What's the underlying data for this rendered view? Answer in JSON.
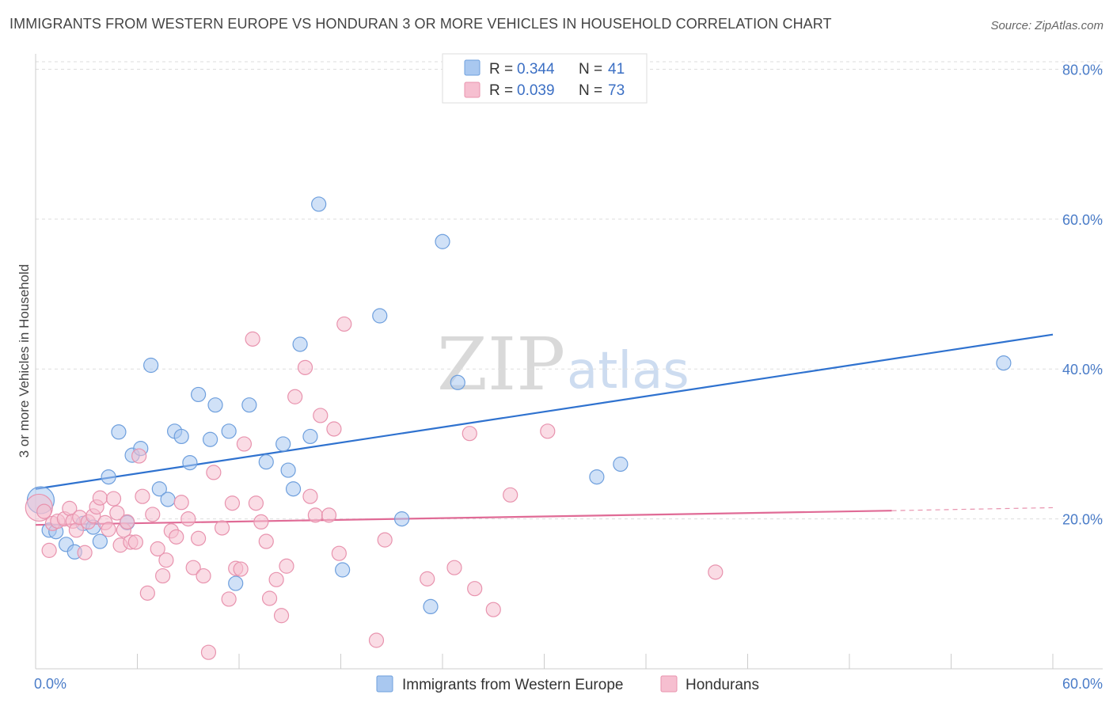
{
  "title": "IMMIGRANTS FROM WESTERN EUROPE VS HONDURAN 3 OR MORE VEHICLES IN HOUSEHOLD CORRELATION CHART",
  "source": "Source: ZipAtlas.com",
  "watermark": {
    "zip": "ZIP",
    "atlas": "atlas"
  },
  "colors": {
    "blue_fill": "#a9c8f0",
    "blue_stroke": "#6e9fdd",
    "blue_line": "#2f72cf",
    "pink_fill": "#f6bfd0",
    "pink_stroke": "#e893ae",
    "pink_line": "#e06b96",
    "grid": "#dddddd",
    "tick_text": "#4a7cc8"
  },
  "stats": [
    {
      "r_label": "R =",
      "r_value": "0.344",
      "n_label": "N =",
      "n_value": "41"
    },
    {
      "r_label": "R =",
      "r_value": "0.039",
      "n_label": "N =",
      "n_value": "73"
    }
  ],
  "chart_data": {
    "type": "scatter",
    "title": "IMMIGRANTS FROM WESTERN EUROPE VS HONDURAN 3 OR MORE VEHICLES IN HOUSEHOLD CORRELATION CHART",
    "xlabel": "",
    "ylabel": "3 or more Vehicles in Household",
    "xlim": [
      0,
      60
    ],
    "ylim": [
      0,
      81
    ],
    "y_ticks": [
      20,
      40,
      60,
      80
    ],
    "y_tick_labels": [
      "20.0%",
      "40.0%",
      "60.0%",
      "80.0%"
    ],
    "x_tick_labels": [
      "0.0%",
      "60.0%"
    ],
    "grid": "horizontal dashed",
    "legend_position": "bottom",
    "series": [
      {
        "name": "Immigrants from Western Europe",
        "r": 0.344,
        "n": 41,
        "trend": {
          "x": [
            0,
            60
          ],
          "y": [
            24.0,
            44.6
          ]
        },
        "points": [
          [
            0.3,
            22.5
          ],
          [
            0.8,
            18.5
          ],
          [
            1.2,
            18.3
          ],
          [
            1.8,
            16.6
          ],
          [
            2.3,
            15.6
          ],
          [
            2.8,
            19.4
          ],
          [
            3.4,
            18.9
          ],
          [
            3.8,
            17.0
          ],
          [
            4.3,
            25.6
          ],
          [
            4.9,
            31.6
          ],
          [
            5.4,
            19.5
          ],
          [
            5.7,
            28.5
          ],
          [
            6.2,
            29.4
          ],
          [
            6.8,
            40.5
          ],
          [
            7.3,
            24.0
          ],
          [
            7.8,
            22.6
          ],
          [
            8.2,
            31.7
          ],
          [
            8.6,
            31.0
          ],
          [
            9.1,
            27.5
          ],
          [
            9.6,
            36.6
          ],
          [
            10.3,
            30.6
          ],
          [
            10.6,
            35.2
          ],
          [
            11.4,
            31.7
          ],
          [
            11.8,
            11.4
          ],
          [
            12.6,
            35.2
          ],
          [
            13.6,
            27.6
          ],
          [
            14.6,
            30.0
          ],
          [
            14.9,
            26.5
          ],
          [
            15.2,
            24.0
          ],
          [
            15.6,
            43.3
          ],
          [
            16.2,
            31.0
          ],
          [
            16.7,
            62.0
          ],
          [
            18.1,
            13.2
          ],
          [
            20.3,
            47.1
          ],
          [
            21.6,
            20.0
          ],
          [
            23.3,
            8.3
          ],
          [
            24.0,
            57.0
          ],
          [
            24.9,
            38.2
          ],
          [
            33.1,
            25.6
          ],
          [
            34.5,
            27.3
          ],
          [
            57.1,
            40.8
          ]
        ]
      },
      {
        "name": "Hondurans",
        "r": 0.039,
        "n": 73,
        "trend": {
          "x": [
            0,
            50.5
          ],
          "y": [
            19.2,
            21.1
          ]
        },
        "trend_ext": {
          "x": [
            50.5,
            60
          ],
          "y": [
            21.1,
            21.5
          ]
        },
        "points": [
          [
            0.2,
            21.5
          ],
          [
            0.5,
            21.0
          ],
          [
            0.8,
            15.8
          ],
          [
            1.0,
            19.4
          ],
          [
            1.3,
            19.7
          ],
          [
            1.7,
            20.0
          ],
          [
            2.0,
            21.4
          ],
          [
            2.2,
            19.7
          ],
          [
            2.4,
            18.5
          ],
          [
            2.6,
            20.2
          ],
          [
            2.9,
            15.5
          ],
          [
            3.1,
            19.6
          ],
          [
            3.4,
            20.4
          ],
          [
            3.6,
            21.6
          ],
          [
            3.8,
            22.8
          ],
          [
            4.1,
            19.5
          ],
          [
            4.3,
            18.6
          ],
          [
            4.6,
            22.7
          ],
          [
            4.8,
            20.8
          ],
          [
            5.0,
            16.5
          ],
          [
            5.2,
            18.5
          ],
          [
            5.4,
            19.6
          ],
          [
            5.6,
            16.9
          ],
          [
            5.9,
            16.9
          ],
          [
            6.1,
            28.4
          ],
          [
            6.3,
            23.0
          ],
          [
            6.6,
            10.1
          ],
          [
            6.9,
            20.6
          ],
          [
            7.2,
            16.0
          ],
          [
            7.5,
            12.4
          ],
          [
            7.7,
            14.5
          ],
          [
            8.0,
            18.4
          ],
          [
            8.3,
            17.6
          ],
          [
            8.6,
            22.2
          ],
          [
            9.0,
            20.0
          ],
          [
            9.3,
            13.5
          ],
          [
            9.6,
            17.4
          ],
          [
            9.9,
            12.4
          ],
          [
            10.2,
            2.2
          ],
          [
            10.5,
            26.2
          ],
          [
            11.0,
            18.8
          ],
          [
            11.4,
            9.3
          ],
          [
            11.6,
            22.1
          ],
          [
            11.8,
            13.4
          ],
          [
            12.1,
            13.3
          ],
          [
            12.3,
            30.0
          ],
          [
            12.8,
            44.0
          ],
          [
            13.0,
            22.1
          ],
          [
            13.3,
            19.6
          ],
          [
            13.6,
            17.0
          ],
          [
            13.8,
            9.4
          ],
          [
            14.2,
            11.9
          ],
          [
            14.5,
            7.1
          ],
          [
            14.8,
            13.7
          ],
          [
            15.3,
            36.3
          ],
          [
            15.9,
            40.2
          ],
          [
            16.2,
            23.0
          ],
          [
            16.5,
            20.5
          ],
          [
            16.8,
            33.8
          ],
          [
            17.3,
            20.5
          ],
          [
            17.6,
            32.0
          ],
          [
            17.9,
            15.4
          ],
          [
            18.2,
            46.0
          ],
          [
            20.1,
            3.8
          ],
          [
            20.6,
            17.2
          ],
          [
            23.1,
            12.0
          ],
          [
            24.7,
            13.5
          ],
          [
            25.6,
            31.4
          ],
          [
            25.9,
            10.7
          ],
          [
            27.0,
            7.9
          ],
          [
            28.0,
            23.2
          ],
          [
            30.2,
            31.7
          ],
          [
            40.1,
            12.9
          ]
        ]
      }
    ]
  }
}
